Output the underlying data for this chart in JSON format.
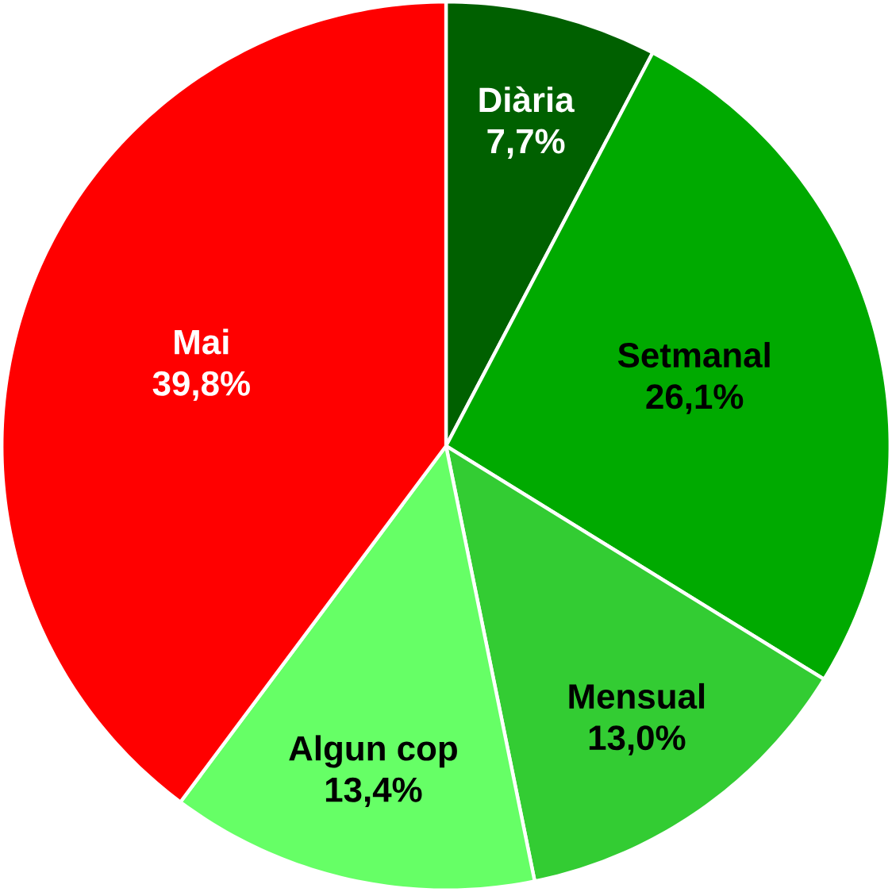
{
  "chart_data": {
    "type": "pie",
    "categories": [
      "Diària",
      "Setmanal",
      "Mensual",
      "Algun cop",
      "Mai"
    ],
    "values": [
      7.7,
      26.1,
      13.0,
      13.4,
      39.8
    ],
    "value_labels": [
      "7,7%",
      "26,1%",
      "13,0%",
      "13,4%",
      "39,8%"
    ],
    "colors": [
      "#006000",
      "#00aa00",
      "#33cc33",
      "#66ff66",
      "#ff0000"
    ]
  }
}
